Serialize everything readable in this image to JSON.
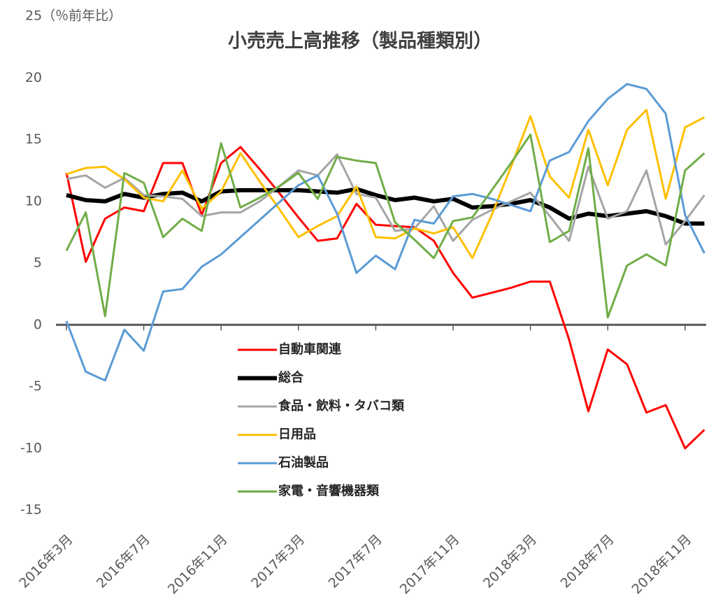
{
  "chart_data": {
    "type": "line",
    "title": "小売売上高推移（製品種類別）",
    "categories": [
      "2016年3月",
      null,
      null,
      null,
      "2016年7月",
      null,
      null,
      null,
      "2016年11月",
      null,
      null,
      null,
      "2017年3月",
      null,
      null,
      null,
      "2017年7月",
      null,
      null,
      null,
      "2017年11月",
      null,
      null,
      null,
      "2018年3月",
      null,
      null,
      null,
      "2018年7月",
      null,
      null,
      null,
      "2018年11月",
      null
    ],
    "ylim": [
      -15,
      25
    ],
    "yticks": [
      -15,
      -10,
      -5,
      0,
      5,
      10,
      15,
      20,
      {
        "value": 25,
        "label": "25（％前年比）"
      }
    ],
    "grid": false,
    "series": [
      {
        "name": "自動車関連",
        "color": "#ff0000",
        "width": 3,
        "values": [
          12.3,
          5.1,
          8.6,
          9.5,
          9.2,
          13.1,
          13.1,
          8.9,
          13.1,
          14.4,
          12.6,
          10.7,
          8.7,
          6.8,
          7.0,
          9.8,
          8.1,
          8.0,
          7.9,
          6.8,
          4.2,
          2.2,
          2.6,
          3.0,
          3.5,
          3.5,
          -1.2,
          -7.0,
          -2.0,
          -3.2,
          -7.1,
          -6.5,
          -10.0,
          -8.5
        ]
      },
      {
        "name": "総合",
        "color": "#000000",
        "width": 6,
        "values": [
          10.5,
          10.1,
          10.0,
          10.6,
          10.3,
          10.6,
          10.7,
          10.0,
          10.8,
          10.9,
          10.9,
          10.9,
          10.9,
          10.8,
          10.7,
          11.0,
          10.5,
          10.1,
          10.3,
          10.0,
          10.2,
          9.5,
          9.6,
          9.8,
          10.1,
          9.5,
          8.6,
          9.0,
          8.8,
          9.0,
          9.2,
          8.8,
          8.2,
          8.2
        ]
      },
      {
        "name": "食品・飲料・タバコ類",
        "color": "#a5a5a5",
        "width": 3,
        "values": [
          11.8,
          12.1,
          11.1,
          11.9,
          10.5,
          10.4,
          10.2,
          8.8,
          9.1,
          9.1,
          10.0,
          11.2,
          12.5,
          12.1,
          13.8,
          10.6,
          10.3,
          7.6,
          7.8,
          9.6,
          6.8,
          8.5,
          9.3,
          10.0,
          10.7,
          8.8,
          6.8,
          12.8,
          8.6,
          9.2,
          12.5,
          6.5,
          8.4,
          10.5
        ]
      },
      {
        "name": "日用品",
        "color": "#ffc000",
        "width": 3,
        "values": [
          12.2,
          12.7,
          12.8,
          11.8,
          10.3,
          10.0,
          12.5,
          9.4,
          10.8,
          13.9,
          11.6,
          9.4,
          7.1,
          8.0,
          8.8,
          11.2,
          7.1,
          7.0,
          7.8,
          7.4,
          7.9,
          5.4,
          8.9,
          12.8,
          16.9,
          12.0,
          10.3,
          15.8,
          11.3,
          15.8,
          17.4,
          10.2,
          16.0,
          16.8
        ]
      },
      {
        "name": "石油製品",
        "color": "#5b9bd5",
        "width": 3,
        "values": [
          0.3,
          -3.8,
          -4.5,
          -0.4,
          -2.1,
          2.7,
          2.9,
          4.7,
          5.7,
          7.1,
          8.5,
          9.9,
          11.3,
          12.1,
          9.0,
          4.2,
          5.6,
          4.5,
          8.5,
          8.2,
          10.4,
          10.6,
          10.2,
          9.7,
          9.2,
          13.3,
          14.0,
          16.5,
          18.3,
          19.5,
          19.1,
          17.1,
          8.9,
          5.8
        ]
      },
      {
        "name": "家電・音響機器類",
        "color": "#70ad47",
        "width": 3,
        "values": [
          6.0,
          9.1,
          0.7,
          12.3,
          11.5,
          7.1,
          8.6,
          7.6,
          14.7,
          9.5,
          10.3,
          11.2,
          12.3,
          10.2,
          13.6,
          13.3,
          13.1,
          8.3,
          6.9,
          5.4,
          8.4,
          8.7,
          10.9,
          13.1,
          15.4,
          6.7,
          7.6,
          14.3,
          0.6,
          4.8,
          5.7,
          4.8,
          12.5,
          13.9
        ]
      }
    ]
  }
}
